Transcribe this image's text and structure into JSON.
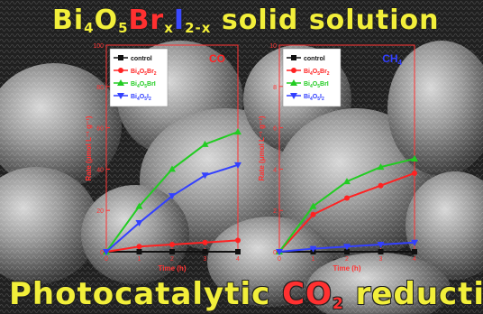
{
  "header": {
    "title_parts": [
      {
        "text": "Bi",
        "style": "yellow"
      },
      {
        "text": "4",
        "style": "yellow-sub"
      },
      {
        "text": "O",
        "style": "yellow"
      },
      {
        "text": "5",
        "style": "yellow-sub"
      },
      {
        "text": "Br",
        "style": "red"
      },
      {
        "text": "x",
        "style": "yellow-sub"
      },
      {
        "text": "I",
        "style": "blue"
      },
      {
        "text": "2-x",
        "style": "yellow-sub"
      },
      {
        "text": " solid solution",
        "style": "yellow"
      }
    ]
  },
  "footer": {
    "title_parts": [
      {
        "text": "Photocatalytic ",
        "style": "yellow"
      },
      {
        "text": "CO",
        "style": "red"
      },
      {
        "text": "2",
        "style": "red-sub"
      },
      {
        "text": " reduction",
        "style": "yellow"
      }
    ]
  },
  "colors": {
    "control": "#111111",
    "Bi4O5Br2": "#ff2222",
    "Bi4O5BrI": "#22cc22",
    "Bi4O5I2": "#3340ff",
    "axis": "#ff3333",
    "label_co": "#ff2222",
    "label_ch4": "#3340ff"
  },
  "chart_data": [
    {
      "type": "line",
      "panel_label": "CO",
      "ylabel": "Rate (μmol L⁻¹ g⁻¹)",
      "xlabel": "Time (h)",
      "xlim": [
        0,
        4
      ],
      "ylim": [
        0,
        100
      ],
      "x_ticks": [
        "0",
        "1",
        "2",
        "3",
        "4"
      ],
      "y_ticks": [
        "0",
        "20",
        "40",
        "60",
        "80",
        "100"
      ],
      "x": [
        0,
        1,
        2,
        3,
        4
      ],
      "series": [
        {
          "name": "control",
          "marker": "square",
          "color": "#111111",
          "values": [
            0,
            0,
            0,
            0,
            0
          ]
        },
        {
          "name": "Bi4O5Br2",
          "marker": "circle",
          "color": "#ff2222",
          "values": [
            0,
            2.5,
            3.5,
            4.5,
            5.5
          ]
        },
        {
          "name": "Bi4O5BrI",
          "marker": "triangle-up",
          "color": "#22cc22",
          "values": [
            0,
            22,
            40,
            52,
            58
          ]
        },
        {
          "name": "Bi4O5I2",
          "marker": "triangle-down",
          "color": "#3340ff",
          "values": [
            0,
            14,
            27,
            37,
            42
          ]
        }
      ],
      "legend": [
        {
          "parts": [
            {
              "t": "control",
              "s": "n"
            }
          ],
          "marker": "square",
          "color": "#111111"
        },
        {
          "parts": [
            {
              "t": "Bi",
              "s": "n"
            },
            {
              "t": "4",
              "s": "sub"
            },
            {
              "t": "O",
              "s": "n"
            },
            {
              "t": "5",
              "s": "sub"
            },
            {
              "t": "Br",
              "s": "n"
            },
            {
              "t": "2",
              "s": "sub"
            }
          ],
          "marker": "circle",
          "color": "#ff2222"
        },
        {
          "parts": [
            {
              "t": "Bi",
              "s": "n"
            },
            {
              "t": "4",
              "s": "sub"
            },
            {
              "t": "O",
              "s": "n"
            },
            {
              "t": "5",
              "s": "sub"
            },
            {
              "t": "BrI",
              "s": "n"
            }
          ],
          "marker": "triangle-up",
          "color": "#22cc22"
        },
        {
          "parts": [
            {
              "t": "Bi",
              "s": "n"
            },
            {
              "t": "4",
              "s": "sub"
            },
            {
              "t": "O",
              "s": "n"
            },
            {
              "t": "5",
              "s": "sub"
            },
            {
              "t": "I",
              "s": "n"
            },
            {
              "t": "2",
              "s": "sub"
            }
          ],
          "marker": "triangle-down",
          "color": "#3340ff"
        }
      ],
      "legend_position": "top-left",
      "grid": false
    },
    {
      "type": "line",
      "panel_label": "CH4",
      "ylabel": "Rate (μmol L⁻¹ g⁻¹)",
      "xlabel": "Time (h)",
      "xlim": [
        0,
        4
      ],
      "ylim": [
        0,
        10
      ],
      "x_ticks": [
        "0",
        "1",
        "2",
        "3",
        "4"
      ],
      "y_ticks": [
        "0",
        "2",
        "4",
        "6",
        "8",
        "10"
      ],
      "x": [
        0,
        1,
        2,
        3,
        4
      ],
      "series": [
        {
          "name": "control",
          "marker": "square",
          "color": "#111111",
          "values": [
            0,
            0,
            0,
            0,
            0
          ]
        },
        {
          "name": "Bi4O5Br2",
          "marker": "circle",
          "color": "#ff2222",
          "values": [
            0,
            1.8,
            2.6,
            3.2,
            3.8
          ]
        },
        {
          "name": "Bi4O5BrI",
          "marker": "triangle-up",
          "color": "#22cc22",
          "values": [
            0,
            2.2,
            3.4,
            4.1,
            4.5
          ]
        },
        {
          "name": "Bi4O5I2",
          "marker": "triangle-down",
          "color": "#3340ff",
          "values": [
            0,
            0.15,
            0.25,
            0.35,
            0.45
          ]
        }
      ],
      "legend": [
        {
          "parts": [
            {
              "t": "control",
              "s": "n"
            }
          ],
          "marker": "square",
          "color": "#111111"
        },
        {
          "parts": [
            {
              "t": "Bi",
              "s": "n"
            },
            {
              "t": "4",
              "s": "sub"
            },
            {
              "t": "O",
              "s": "n"
            },
            {
              "t": "5",
              "s": "sub"
            },
            {
              "t": "Br",
              "s": "n"
            },
            {
              "t": "2",
              "s": "sub"
            }
          ],
          "marker": "circle",
          "color": "#ff2222"
        },
        {
          "parts": [
            {
              "t": "Bi",
              "s": "n"
            },
            {
              "t": "4",
              "s": "sub"
            },
            {
              "t": "O",
              "s": "n"
            },
            {
              "t": "5",
              "s": "sub"
            },
            {
              "t": "BrI",
              "s": "n"
            }
          ],
          "marker": "triangle-up",
          "color": "#22cc22"
        },
        {
          "parts": [
            {
              "t": "Bi",
              "s": "n"
            },
            {
              "t": "4",
              "s": "sub"
            },
            {
              "t": "O",
              "s": "n"
            },
            {
              "t": "5",
              "s": "sub"
            },
            {
              "t": "I",
              "s": "n"
            },
            {
              "t": "2",
              "s": "sub"
            }
          ],
          "marker": "triangle-down",
          "color": "#3340ff"
        }
      ],
      "legend_position": "top-left",
      "grid": false
    }
  ]
}
